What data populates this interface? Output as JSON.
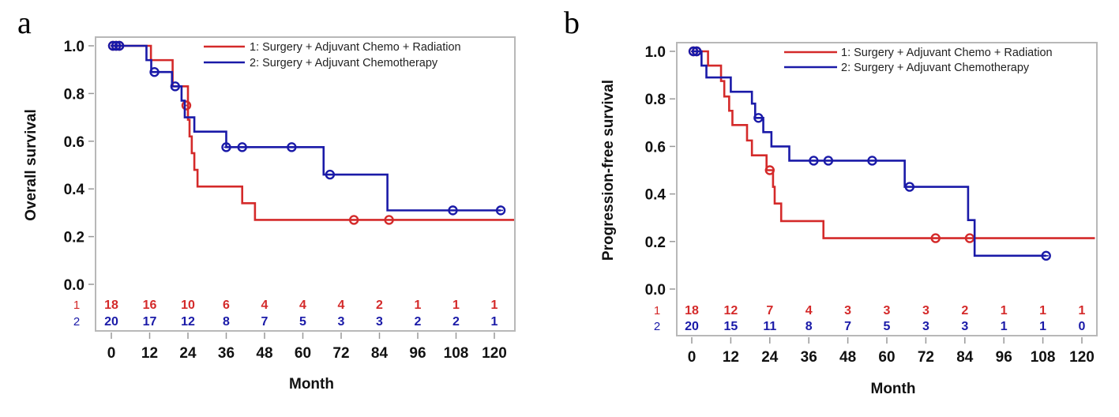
{
  "chart_data": [
    {
      "panel_label": "a",
      "type": "line",
      "subtype": "kaplan-meier step",
      "title": "",
      "xlabel": "Month",
      "ylabel": "Overall survival",
      "xlim": [
        0,
        120
      ],
      "ylim": [
        0.0,
        1.0
      ],
      "xticks": [
        "0",
        "12",
        "24",
        "36",
        "48",
        "60",
        "72",
        "84",
        "96",
        "108",
        "120"
      ],
      "yticks": [
        "0.0",
        "0.2",
        "0.4",
        "0.6",
        "0.8",
        "1.0"
      ],
      "grid": false,
      "legend_position": "top-right",
      "series": [
        {
          "name": "1: Surgery + Adjuvant Chemo + Radiation",
          "group": "1",
          "color": "#d42a2a",
          "steps": [
            [
              0,
              1.0
            ],
            [
              12.4,
              0.94
            ],
            [
              19.2,
              0.83
            ],
            [
              24.0,
              0.69
            ],
            [
              24.5,
              0.62
            ],
            [
              25.2,
              0.55
            ],
            [
              26.0,
              0.48
            ],
            [
              27.0,
              0.41
            ],
            [
              41.0,
              0.34
            ],
            [
              45.0,
              0.27
            ]
          ],
          "end_x": 127,
          "censored": [
            [
              0.5,
              1.0
            ],
            [
              1.5,
              1.0
            ],
            [
              2.5,
              1.0
            ],
            [
              23.5,
              0.75
            ],
            [
              76.0,
              0.27
            ],
            [
              87.0,
              0.27
            ]
          ],
          "at_risk": [
            "18",
            "16",
            "10",
            "6",
            "4",
            "4",
            "4",
            "2",
            "1",
            "1",
            "1"
          ]
        },
        {
          "name": "2: Surgery + Adjuvant Chemotherapy",
          "group": "2",
          "color": "#1a1aa8",
          "steps": [
            [
              0,
              1.0
            ],
            [
              11.0,
              0.94
            ],
            [
              12.5,
              0.89
            ],
            [
              19.0,
              0.83
            ],
            [
              22.0,
              0.77
            ],
            [
              23.0,
              0.7
            ],
            [
              26.0,
              0.64
            ],
            [
              36.0,
              0.575
            ],
            [
              66.5,
              0.46
            ],
            [
              86.5,
              0.31
            ]
          ],
          "end_x": 122,
          "censored": [
            [
              0.5,
              1.0
            ],
            [
              1.5,
              1.0
            ],
            [
              2.5,
              1.0
            ],
            [
              13.5,
              0.89
            ],
            [
              20.0,
              0.83
            ],
            [
              36.0,
              0.575
            ],
            [
              41.0,
              0.575
            ],
            [
              56.5,
              0.575
            ],
            [
              68.5,
              0.46
            ],
            [
              107.0,
              0.31
            ],
            [
              122.0,
              0.31
            ]
          ],
          "at_risk": [
            "20",
            "17",
            "12",
            "8",
            "7",
            "5",
            "3",
            "3",
            "2",
            "2",
            "1"
          ]
        }
      ]
    },
    {
      "panel_label": "b",
      "type": "line",
      "subtype": "kaplan-meier step",
      "title": "",
      "xlabel": "Month",
      "ylabel": "Progression-free survival",
      "xlim": [
        0,
        120
      ],
      "ylim": [
        0.0,
        1.0
      ],
      "xticks": [
        "0",
        "12",
        "24",
        "36",
        "48",
        "60",
        "72",
        "84",
        "96",
        "108",
        "120"
      ],
      "yticks": [
        "0.0",
        "0.2",
        "0.4",
        "0.6",
        "0.8",
        "1.0"
      ],
      "grid": false,
      "legend_position": "top-right",
      "series": [
        {
          "name": "1: Surgery + Adjuvant Chemo + Radiation",
          "group": "1",
          "color": "#d42a2a",
          "steps": [
            [
              0,
              1.0
            ],
            [
              5.0,
              0.94
            ],
            [
              9.0,
              0.875
            ],
            [
              10.0,
              0.81
            ],
            [
              11.5,
              0.75
            ],
            [
              12.5,
              0.69
            ],
            [
              17.0,
              0.625
            ],
            [
              18.5,
              0.5625
            ],
            [
              23.0,
              0.5
            ],
            [
              25.0,
              0.43
            ],
            [
              25.5,
              0.36
            ],
            [
              27.5,
              0.286
            ],
            [
              40.5,
              0.214
            ]
          ],
          "end_x": 124,
          "censored": [
            [
              0.5,
              1.0
            ],
            [
              1.5,
              1.0
            ],
            [
              24.0,
              0.5
            ],
            [
              75.0,
              0.214
            ],
            [
              85.5,
              0.214
            ]
          ],
          "at_risk": [
            "18",
            "12",
            "7",
            "4",
            "3",
            "3",
            "3",
            "2",
            "1",
            "1",
            "1"
          ]
        },
        {
          "name": "2: Surgery + Adjuvant Chemotherapy",
          "group": "2",
          "color": "#1a1aa8",
          "steps": [
            [
              0,
              1.0
            ],
            [
              3.0,
              0.94
            ],
            [
              4.5,
              0.89
            ],
            [
              12.0,
              0.83
            ],
            [
              18.5,
              0.78
            ],
            [
              19.5,
              0.72
            ],
            [
              22.0,
              0.66
            ],
            [
              24.5,
              0.6
            ],
            [
              30.0,
              0.54
            ],
            [
              65.5,
              0.43
            ],
            [
              85.0,
              0.29
            ],
            [
              87.0,
              0.14
            ]
          ],
          "end_x": 109,
          "censored": [
            [
              0.5,
              1.0
            ],
            [
              1.5,
              1.0
            ],
            [
              20.5,
              0.72
            ],
            [
              37.5,
              0.54
            ],
            [
              42.0,
              0.54
            ],
            [
              55.5,
              0.54
            ],
            [
              67.0,
              0.43
            ],
            [
              109.0,
              0.14
            ]
          ],
          "at_risk": [
            "20",
            "15",
            "11",
            "8",
            "7",
            "5",
            "3",
            "3",
            "1",
            "1",
            "0"
          ]
        }
      ]
    }
  ]
}
